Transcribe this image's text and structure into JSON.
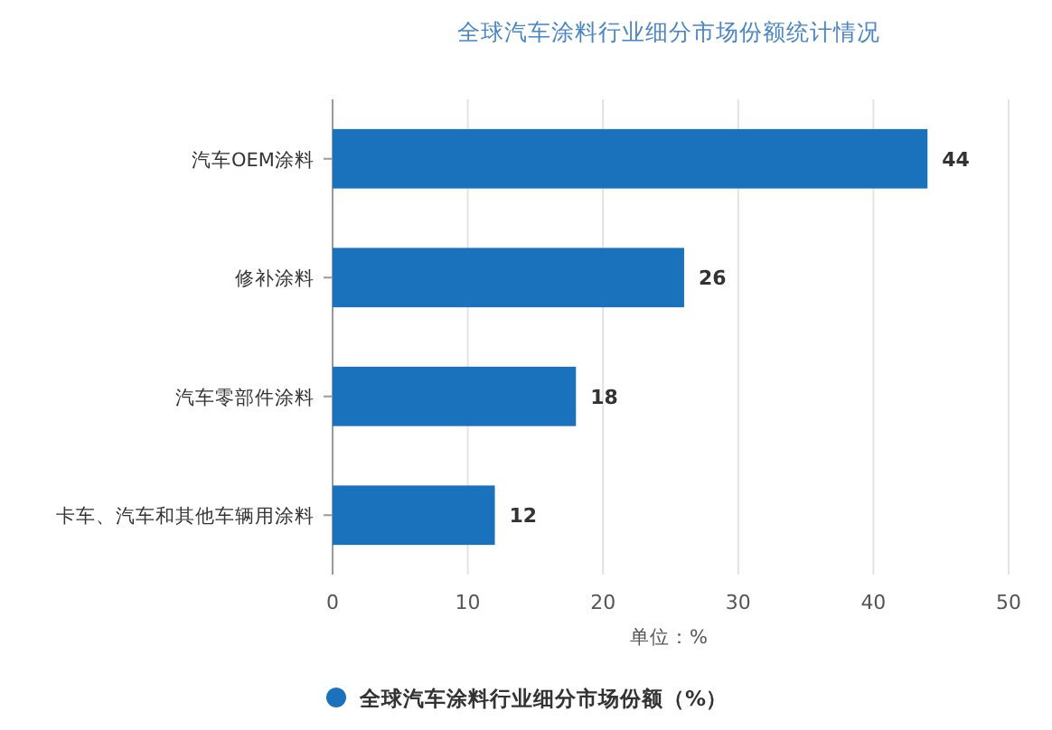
{
  "chart_data": {
    "type": "bar",
    "orientation": "horizontal",
    "title": "全球汽车涂料行业细分市场份额统计情况",
    "xlabel": "单位：%",
    "categories": [
      "汽车OEM涂料",
      "修补涂料",
      "汽车零部件涂料",
      "卡车、汽车和其他车辆用涂料"
    ],
    "series": [
      {
        "name": "全球汽车涂料行业细分市场份额（%）",
        "color": "#1a72bd",
        "values": [
          44,
          26,
          18,
          12
        ]
      }
    ],
    "xlim": [
      0,
      50
    ],
    "xticks": [
      0,
      10,
      20,
      30,
      40,
      50
    ],
    "grid": "x",
    "legend": "bottom",
    "data_labels": true
  }
}
